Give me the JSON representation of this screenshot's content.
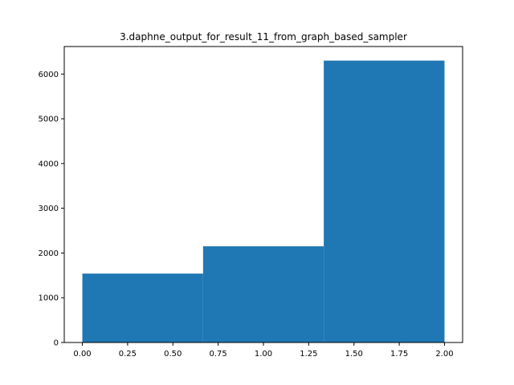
{
  "chart_data": {
    "type": "bar",
    "title": "3.daphne_output_for_result_11_from_graph_based_sampler",
    "xlabel": "",
    "ylabel": "",
    "bins": [
      {
        "x0": 0.0,
        "x1": 0.6667,
        "count": 1540
      },
      {
        "x0": 0.6667,
        "x1": 1.3333,
        "count": 2150
      },
      {
        "x0": 1.3333,
        "x1": 2.0,
        "count": 6300
      }
    ],
    "xlim": [
      -0.1,
      2.1
    ],
    "ylim": [
      0,
      6615
    ],
    "xticks": [
      0.0,
      0.25,
      0.5,
      0.75,
      1.0,
      1.25,
      1.5,
      1.75,
      2.0
    ],
    "xtick_labels": [
      "0.00",
      "0.25",
      "0.50",
      "0.75",
      "1.00",
      "1.25",
      "1.50",
      "1.75",
      "2.00"
    ],
    "yticks": [
      0,
      1000,
      2000,
      3000,
      4000,
      5000,
      6000
    ],
    "ytick_labels": [
      "0",
      "1000",
      "2000",
      "3000",
      "4000",
      "5000",
      "6000"
    ],
    "grid": false,
    "bar_color": "#1f77b4"
  }
}
